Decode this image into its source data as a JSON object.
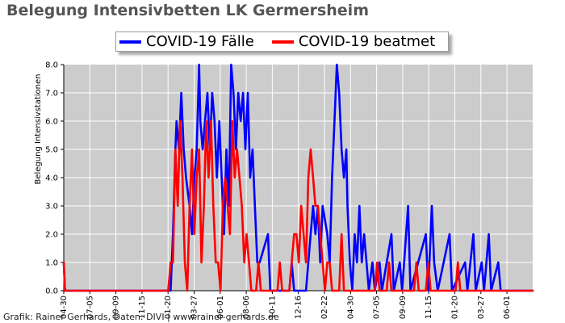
{
  "page_title": "Belegung Intensivbetten LK Germersheim",
  "credit": "Grafik: Rainer Gerhards, Daten: DIVI | www.rainer-gerhards.de",
  "colors": {
    "plot_bg": "#cccccc",
    "gridline": "#ffffff",
    "series_faelle": "#0000ff",
    "series_beatmet": "#ff0000"
  },
  "chart_data": {
    "type": "line",
    "title": "Belegung Intensivbetten LK Germersheim",
    "xlabel": "",
    "ylabel": "Belegung Intensivstationen",
    "ylim": [
      0,
      8
    ],
    "y_ticks": [
      "0.0",
      "1.0",
      "2.0",
      "3.0",
      "4.0",
      "5.0",
      "6.0",
      "7.0",
      "8.0"
    ],
    "x_ticks": [
      "04-30",
      "07-05",
      "09-09",
      "11-15",
      "01-20",
      "03-27",
      "06-01",
      "08-06",
      "10-11",
      "12-16",
      "02-22",
      "04-30",
      "07-05",
      "09-09",
      "11-15",
      "01-20",
      "03-27",
      "06-01"
    ],
    "grid": true,
    "legend_position": "top",
    "series": [
      {
        "name": "COVID-19 Fälle",
        "color": "#0000ff",
        "points": [
          [
            0,
            1
          ],
          [
            1,
            0
          ],
          [
            90,
            0
          ],
          [
            92,
            2
          ],
          [
            94,
            5
          ],
          [
            95,
            6
          ],
          [
            97,
            5
          ],
          [
            99,
            7
          ],
          [
            101,
            5
          ],
          [
            103,
            4
          ],
          [
            106,
            3
          ],
          [
            108,
            2
          ],
          [
            110,
            4
          ],
          [
            112,
            5
          ],
          [
            114,
            8
          ],
          [
            115,
            6
          ],
          [
            117,
            5
          ],
          [
            119,
            6
          ],
          [
            121,
            7
          ],
          [
            123,
            5
          ],
          [
            125,
            7
          ],
          [
            127,
            6
          ],
          [
            129,
            4
          ],
          [
            131,
            6
          ],
          [
            133,
            4
          ],
          [
            135,
            2
          ],
          [
            137,
            5
          ],
          [
            139,
            3
          ],
          [
            141,
            8
          ],
          [
            143,
            7
          ],
          [
            145,
            5
          ],
          [
            147,
            7
          ],
          [
            149,
            6
          ],
          [
            151,
            7
          ],
          [
            153,
            5
          ],
          [
            155,
            7
          ],
          [
            157,
            4
          ],
          [
            159,
            5
          ],
          [
            161,
            3
          ],
          [
            163,
            1
          ],
          [
            165,
            1
          ],
          [
            172,
            2
          ],
          [
            174,
            0
          ],
          [
            190,
            0
          ],
          [
            192,
            1
          ],
          [
            194,
            0
          ],
          [
            204,
            0
          ],
          [
            206,
            1
          ],
          [
            208,
            2
          ],
          [
            210,
            3
          ],
          [
            212,
            2
          ],
          [
            214,
            3
          ],
          [
            216,
            1
          ],
          [
            218,
            3
          ],
          [
            222,
            2
          ],
          [
            224,
            1
          ],
          [
            226,
            4
          ],
          [
            228,
            6
          ],
          [
            230,
            8
          ],
          [
            232,
            7
          ],
          [
            234,
            5
          ],
          [
            236,
            4
          ],
          [
            238,
            5
          ],
          [
            239,
            3
          ],
          [
            241,
            1
          ],
          [
            243,
            0
          ],
          [
            245,
            2
          ],
          [
            247,
            1
          ],
          [
            249,
            3
          ],
          [
            251,
            1
          ],
          [
            253,
            2
          ],
          [
            255,
            1
          ],
          [
            257,
            0
          ],
          [
            260,
            1
          ],
          [
            262,
            0
          ],
          [
            266,
            1
          ],
          [
            268,
            0
          ],
          [
            276,
            2
          ],
          [
            278,
            0
          ],
          [
            283,
            1
          ],
          [
            285,
            0
          ],
          [
            290,
            3
          ],
          [
            292,
            0
          ],
          [
            305,
            2
          ],
          [
            307,
            0
          ],
          [
            310,
            3
          ],
          [
            312,
            1
          ],
          [
            315,
            0
          ],
          [
            325,
            2
          ],
          [
            327,
            0
          ],
          [
            338,
            1
          ],
          [
            340,
            0
          ],
          [
            345,
            2
          ],
          [
            347,
            0
          ],
          [
            352,
            1
          ],
          [
            354,
            0
          ],
          [
            358,
            2
          ],
          [
            360,
            0
          ],
          [
            366,
            1
          ],
          [
            368,
            0
          ],
          [
            395,
            0
          ]
        ]
      },
      {
        "name": "COVID-19 beatmet",
        "color": "#ff0000",
        "points": [
          [
            0,
            1
          ],
          [
            1,
            0
          ],
          [
            88,
            0
          ],
          [
            90,
            1
          ],
          [
            92,
            1
          ],
          [
            94,
            5
          ],
          [
            96,
            3
          ],
          [
            98,
            6
          ],
          [
            100,
            4
          ],
          [
            102,
            1
          ],
          [
            104,
            0
          ],
          [
            106,
            3
          ],
          [
            108,
            5
          ],
          [
            110,
            2
          ],
          [
            112,
            4
          ],
          [
            114,
            5
          ],
          [
            116,
            1
          ],
          [
            118,
            3
          ],
          [
            120,
            6
          ],
          [
            122,
            4
          ],
          [
            124,
            6
          ],
          [
            126,
            3
          ],
          [
            128,
            1
          ],
          [
            130,
            1
          ],
          [
            132,
            0
          ],
          [
            134,
            3
          ],
          [
            136,
            4
          ],
          [
            138,
            3
          ],
          [
            140,
            2
          ],
          [
            142,
            6
          ],
          [
            144,
            4
          ],
          [
            146,
            5
          ],
          [
            148,
            4
          ],
          [
            150,
            3
          ],
          [
            152,
            1
          ],
          [
            154,
            2
          ],
          [
            156,
            1
          ],
          [
            158,
            0
          ],
          [
            162,
            0
          ],
          [
            164,
            1
          ],
          [
            166,
            0
          ],
          [
            180,
            0
          ],
          [
            182,
            1
          ],
          [
            184,
            0
          ],
          [
            190,
            0
          ],
          [
            192,
            1
          ],
          [
            194,
            2
          ],
          [
            196,
            2
          ],
          [
            198,
            1
          ],
          [
            200,
            3
          ],
          [
            202,
            2
          ],
          [
            204,
            1
          ],
          [
            206,
            4
          ],
          [
            208,
            5
          ],
          [
            210,
            4
          ],
          [
            212,
            3
          ],
          [
            214,
            3
          ],
          [
            216,
            2
          ],
          [
            218,
            1
          ],
          [
            220,
            0
          ],
          [
            222,
            1
          ],
          [
            224,
            1
          ],
          [
            226,
            0
          ],
          [
            232,
            0
          ],
          [
            234,
            2
          ],
          [
            236,
            0
          ],
          [
            262,
            0
          ],
          [
            264,
            1
          ],
          [
            266,
            0
          ],
          [
            272,
            0
          ],
          [
            274,
            1
          ],
          [
            276,
            0
          ],
          [
            295,
            0
          ],
          [
            297,
            1
          ],
          [
            299,
            0
          ],
          [
            305,
            0
          ],
          [
            307,
            1
          ],
          [
            309,
            0
          ],
          [
            330,
            0
          ],
          [
            332,
            1
          ],
          [
            334,
            0
          ],
          [
            395,
            0
          ]
        ]
      }
    ]
  }
}
